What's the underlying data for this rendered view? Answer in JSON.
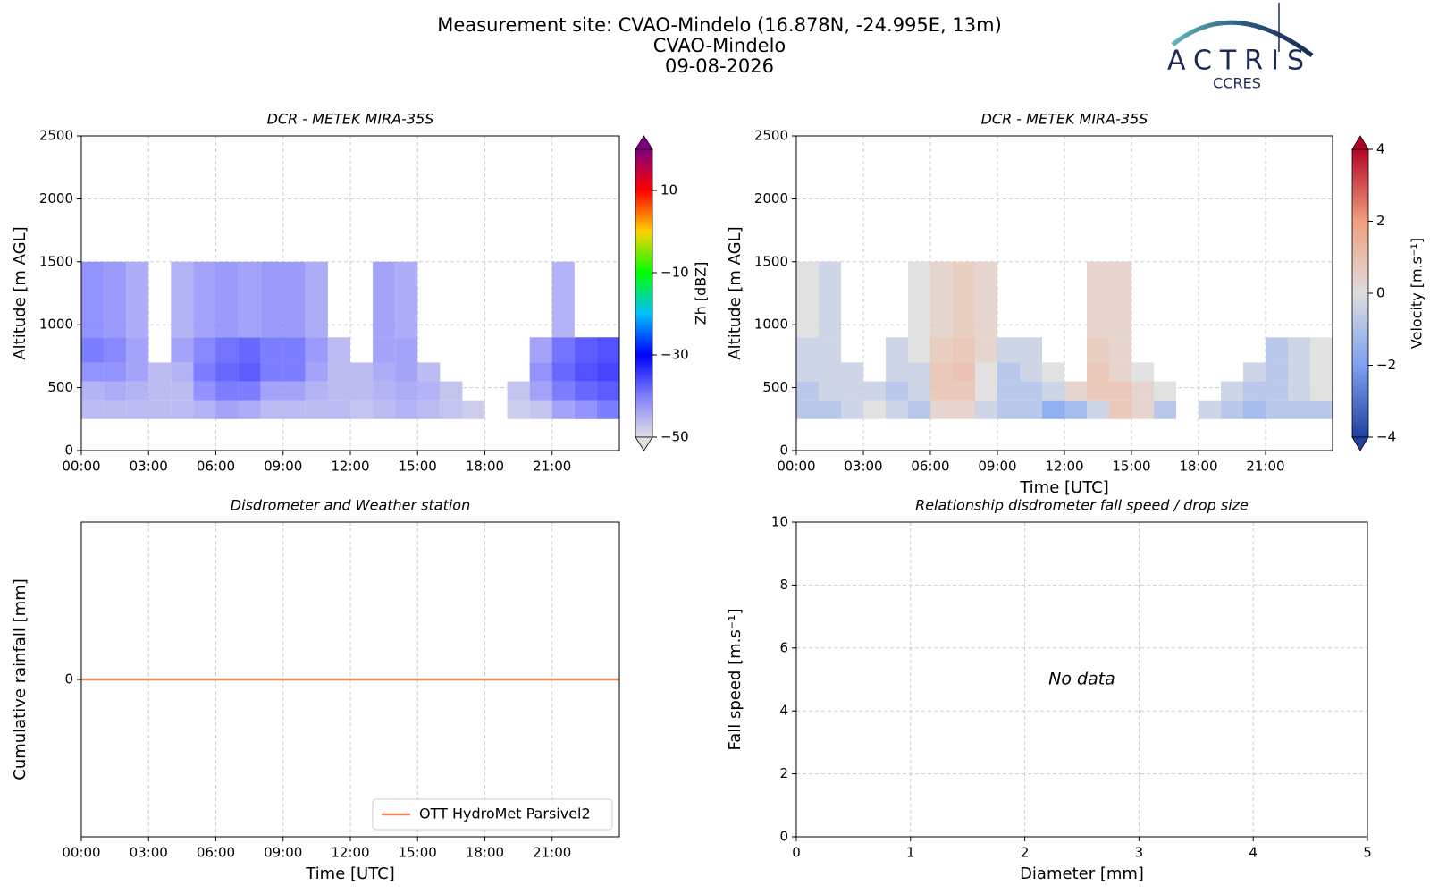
{
  "header": {
    "title_lines": [
      "Measurement site: CVAO-Mindelo (16.878N, -24.995E, 13m)",
      "CVAO-Mindelo",
      "09-08-2026"
    ],
    "logo": {
      "name": "ACTRIS",
      "sub": "CCRES"
    }
  },
  "chart_data": [
    {
      "type": "heatmap",
      "title": "DCR - METEK MIRA-35S",
      "ylabel": "Altitude [m AGL]",
      "xlim": [
        0,
        24
      ],
      "xticks": [
        {
          "value": 0,
          "label": "00:00"
        },
        {
          "value": 3,
          "label": "03:00"
        },
        {
          "value": 6,
          "label": "06:00"
        },
        {
          "value": 9,
          "label": "09:00"
        },
        {
          "value": 12,
          "label": "12:00"
        },
        {
          "value": 15,
          "label": "15:00"
        },
        {
          "value": 18,
          "label": "18:00"
        },
        {
          "value": 21,
          "label": "21:00"
        }
      ],
      "ylim": [
        0,
        2500
      ],
      "yticks": [
        0,
        500,
        1000,
        1500,
        2000,
        2500
      ],
      "grid": true,
      "x_edges": [
        0,
        1,
        2,
        3,
        4,
        5,
        6,
        7,
        8,
        9,
        10,
        11,
        12,
        13,
        14,
        15,
        16,
        17,
        18,
        19,
        20,
        21,
        22,
        23,
        24
      ],
      "y_edges": [
        250,
        400,
        550,
        700,
        900,
        1500
      ],
      "z": [
        [
          -45,
          -45,
          -45,
          -45,
          -45,
          -44,
          -42,
          -43,
          -45,
          -45,
          -45,
          -45,
          -46,
          -45,
          -44,
          -45,
          -46,
          -47,
          null,
          -47,
          -46,
          -42,
          -40,
          -38
        ],
        [
          -44,
          -43,
          -44,
          -45,
          -45,
          -40,
          -38,
          -38,
          -42,
          -42,
          -44,
          -45,
          -45,
          -44,
          -43,
          -44,
          -46,
          null,
          null,
          -46,
          -42,
          -38,
          -36,
          -35
        ],
        [
          -40,
          -40,
          -42,
          -45,
          -44,
          -38,
          -36,
          -35,
          -38,
          -38,
          -42,
          -45,
          -45,
          -43,
          -42,
          -45,
          null,
          null,
          null,
          null,
          -40,
          -36,
          -34,
          -33
        ],
        [
          -38,
          -39,
          -42,
          null,
          -42,
          -39,
          -37,
          -36,
          -38,
          -38,
          -41,
          -45,
          null,
          -42,
          -42,
          null,
          null,
          null,
          null,
          null,
          -42,
          -37,
          -35,
          -34
        ],
        [
          -40,
          -41,
          -43,
          null,
          -44,
          -42,
          -41,
          -42,
          -41,
          -41,
          -43,
          null,
          null,
          -42,
          -43,
          null,
          null,
          null,
          null,
          null,
          null,
          -44,
          null,
          null
        ]
      ],
      "cmap": [
        "#e0e0e0",
        "#8080ff",
        "#0000ff",
        "#00c0ff",
        "#00ff00",
        "#ffd000",
        "#ff0000",
        "#800080"
      ],
      "clim": [
        -50,
        20
      ],
      "cticks": [
        {
          "value": -50,
          "label": "−50"
        },
        {
          "value": -30,
          "label": "−30"
        },
        {
          "value": -10,
          "label": "−10"
        },
        10
      ],
      "clabel": "Zh [dBZ]"
    },
    {
      "type": "heatmap",
      "title": "DCR - METEK MIRA-35S",
      "ylabel": "Altitude [m AGL]",
      "xlabel": "Time [UTC]",
      "xlim": [
        0,
        24
      ],
      "xticks": [
        {
          "value": 0,
          "label": "00:00"
        },
        {
          "value": 3,
          "label": "03:00"
        },
        {
          "value": 6,
          "label": "06:00"
        },
        {
          "value": 9,
          "label": "09:00"
        },
        {
          "value": 12,
          "label": "12:00"
        },
        {
          "value": 15,
          "label": "15:00"
        },
        {
          "value": 18,
          "label": "18:00"
        },
        {
          "value": 21,
          "label": "21:00"
        }
      ],
      "ylim": [
        0,
        2500
      ],
      "yticks": [
        0,
        500,
        1000,
        1500,
        2000,
        2500
      ],
      "grid": true,
      "x_edges": [
        0,
        1,
        2,
        3,
        4,
        5,
        6,
        7,
        8,
        9,
        10,
        11,
        12,
        13,
        14,
        15,
        16,
        17,
        18,
        19,
        20,
        21,
        22,
        23,
        24
      ],
      "y_edges": [
        250,
        400,
        550,
        700,
        900,
        1500
      ],
      "z": [
        [
          -1,
          -1,
          -0.5,
          0,
          -0.5,
          -1,
          0.5,
          0.5,
          -0.5,
          -1,
          -1,
          -2,
          -1.5,
          -0.5,
          1,
          0.5,
          -1,
          null,
          -0.5,
          -1,
          -1.5,
          -1,
          -1,
          -1
        ],
        [
          -1,
          -0.5,
          -0.5,
          -0.5,
          -1,
          -0.5,
          1,
          1,
          0,
          -1,
          -1,
          -0.5,
          0.5,
          1,
          1,
          0.5,
          0,
          null,
          null,
          -0.5,
          -1,
          -1,
          -0.5,
          0
        ],
        [
          -0.5,
          -0.5,
          -0.5,
          null,
          -0.5,
          -0.5,
          1,
          1.2,
          0,
          -1,
          -0.5,
          0,
          null,
          1,
          0.5,
          0,
          null,
          null,
          null,
          null,
          -0.5,
          -1,
          -0.5,
          0
        ],
        [
          -0.5,
          -0.5,
          null,
          null,
          -0.5,
          0,
          0.8,
          1,
          0.5,
          -0.5,
          -0.5,
          null,
          null,
          0.8,
          0.5,
          null,
          null,
          null,
          null,
          null,
          null,
          -1,
          -0.5,
          0
        ],
        [
          0,
          -0.5,
          null,
          null,
          null,
          0,
          0.5,
          0.8,
          0.5,
          null,
          null,
          null,
          null,
          0.5,
          0.5,
          null,
          null,
          null,
          null,
          null,
          null,
          null,
          null,
          null
        ]
      ],
      "cmap": [
        "#2140a0",
        "#7ea2f0",
        "#dddddd",
        "#f0a07e",
        "#b40426"
      ],
      "clim": [
        -4,
        4
      ],
      "cticks": [
        {
          "value": -4,
          "label": "−4"
        },
        {
          "value": -2,
          "label": "−2"
        },
        0,
        2,
        4
      ],
      "clabel": "Velocity [m.s⁻¹]"
    },
    {
      "type": "line",
      "title": "Disdrometer and Weather station",
      "ylabel": "Cumulative rainfall [mm]",
      "xlabel": "Time [UTC]",
      "xlim": [
        0,
        24
      ],
      "xticks": [
        {
          "value": 0,
          "label": "00:00"
        },
        {
          "value": 3,
          "label": "03:00"
        },
        {
          "value": 6,
          "label": "06:00"
        },
        {
          "value": 9,
          "label": "09:00"
        },
        {
          "value": 12,
          "label": "12:00"
        },
        {
          "value": 15,
          "label": "15:00"
        },
        {
          "value": 18,
          "label": "18:00"
        },
        {
          "value": 21,
          "label": "21:00"
        }
      ],
      "ylim": [
        -0.055,
        0.055
      ],
      "yticks": [
        0
      ],
      "grid": true,
      "legend": "lower right",
      "x": [
        0,
        24
      ],
      "series": [
        {
          "name": "OTT HydroMet Parsivel2",
          "color": "#f08a5d",
          "values": [
            0,
            0
          ]
        }
      ]
    },
    {
      "type": "scatter",
      "title": "Relationship disdrometer fall speed / drop size",
      "ylabel": "Fall speed [m.s⁻¹]",
      "xlabel": "Diameter [mm]",
      "xlim": [
        0,
        5
      ],
      "xticks": [
        0,
        1,
        2,
        3,
        4,
        5
      ],
      "ylim": [
        0,
        10
      ],
      "yticks": [
        0,
        2,
        4,
        6,
        8,
        10
      ],
      "grid": true,
      "annotation": "No data"
    }
  ]
}
